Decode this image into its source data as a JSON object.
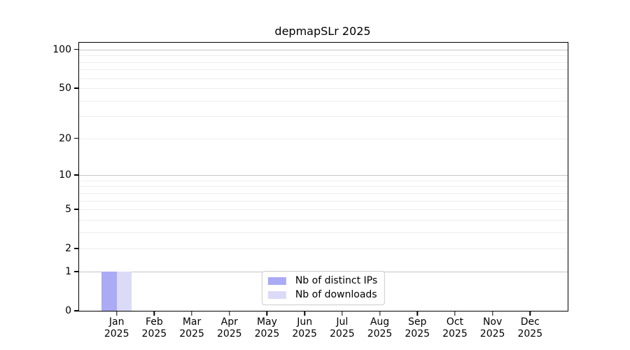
{
  "chart_data": {
    "type": "bar",
    "title": "depmapSLr 2025",
    "xlabel": "",
    "ylabel": "",
    "yscale": "log1p",
    "ylim": [
      0,
      113
    ],
    "ytick_values": [
      0,
      1,
      2,
      5,
      10,
      20,
      50,
      100
    ],
    "grid_major": [
      1,
      10,
      100
    ],
    "grid_minor": [
      2,
      3,
      4,
      5,
      6,
      7,
      8,
      9,
      20,
      30,
      40,
      50,
      60,
      70,
      80,
      90
    ],
    "categories": [
      {
        "month": "Jan",
        "year": "2025"
      },
      {
        "month": "Feb",
        "year": "2025"
      },
      {
        "month": "Mar",
        "year": "2025"
      },
      {
        "month": "Apr",
        "year": "2025"
      },
      {
        "month": "May",
        "year": "2025"
      },
      {
        "month": "Jun",
        "year": "2025"
      },
      {
        "month": "Jul",
        "year": "2025"
      },
      {
        "month": "Aug",
        "year": "2025"
      },
      {
        "month": "Sep",
        "year": "2025"
      },
      {
        "month": "Oct",
        "year": "2025"
      },
      {
        "month": "Nov",
        "year": "2025"
      },
      {
        "month": "Dec",
        "year": "2025"
      }
    ],
    "series": [
      {
        "name": "Nb of distinct IPs",
        "color": "#aaaaf5",
        "values": [
          1,
          0,
          0,
          0,
          0,
          0,
          0,
          0,
          0,
          0,
          0,
          0
        ]
      },
      {
        "name": "Nb of downloads",
        "color": "#dbdbf8",
        "values": [
          1,
          0,
          0,
          0,
          0,
          0,
          0,
          0,
          0,
          0,
          0,
          0
        ]
      }
    ],
    "legend": {
      "position": "lower center",
      "entries": [
        "Nb of distinct IPs",
        "Nb of downloads"
      ]
    },
    "colors": {
      "spine": "#000000",
      "grid_major": "#c6c6c6",
      "grid_minor": "#ededed",
      "background": "#ffffff"
    }
  }
}
